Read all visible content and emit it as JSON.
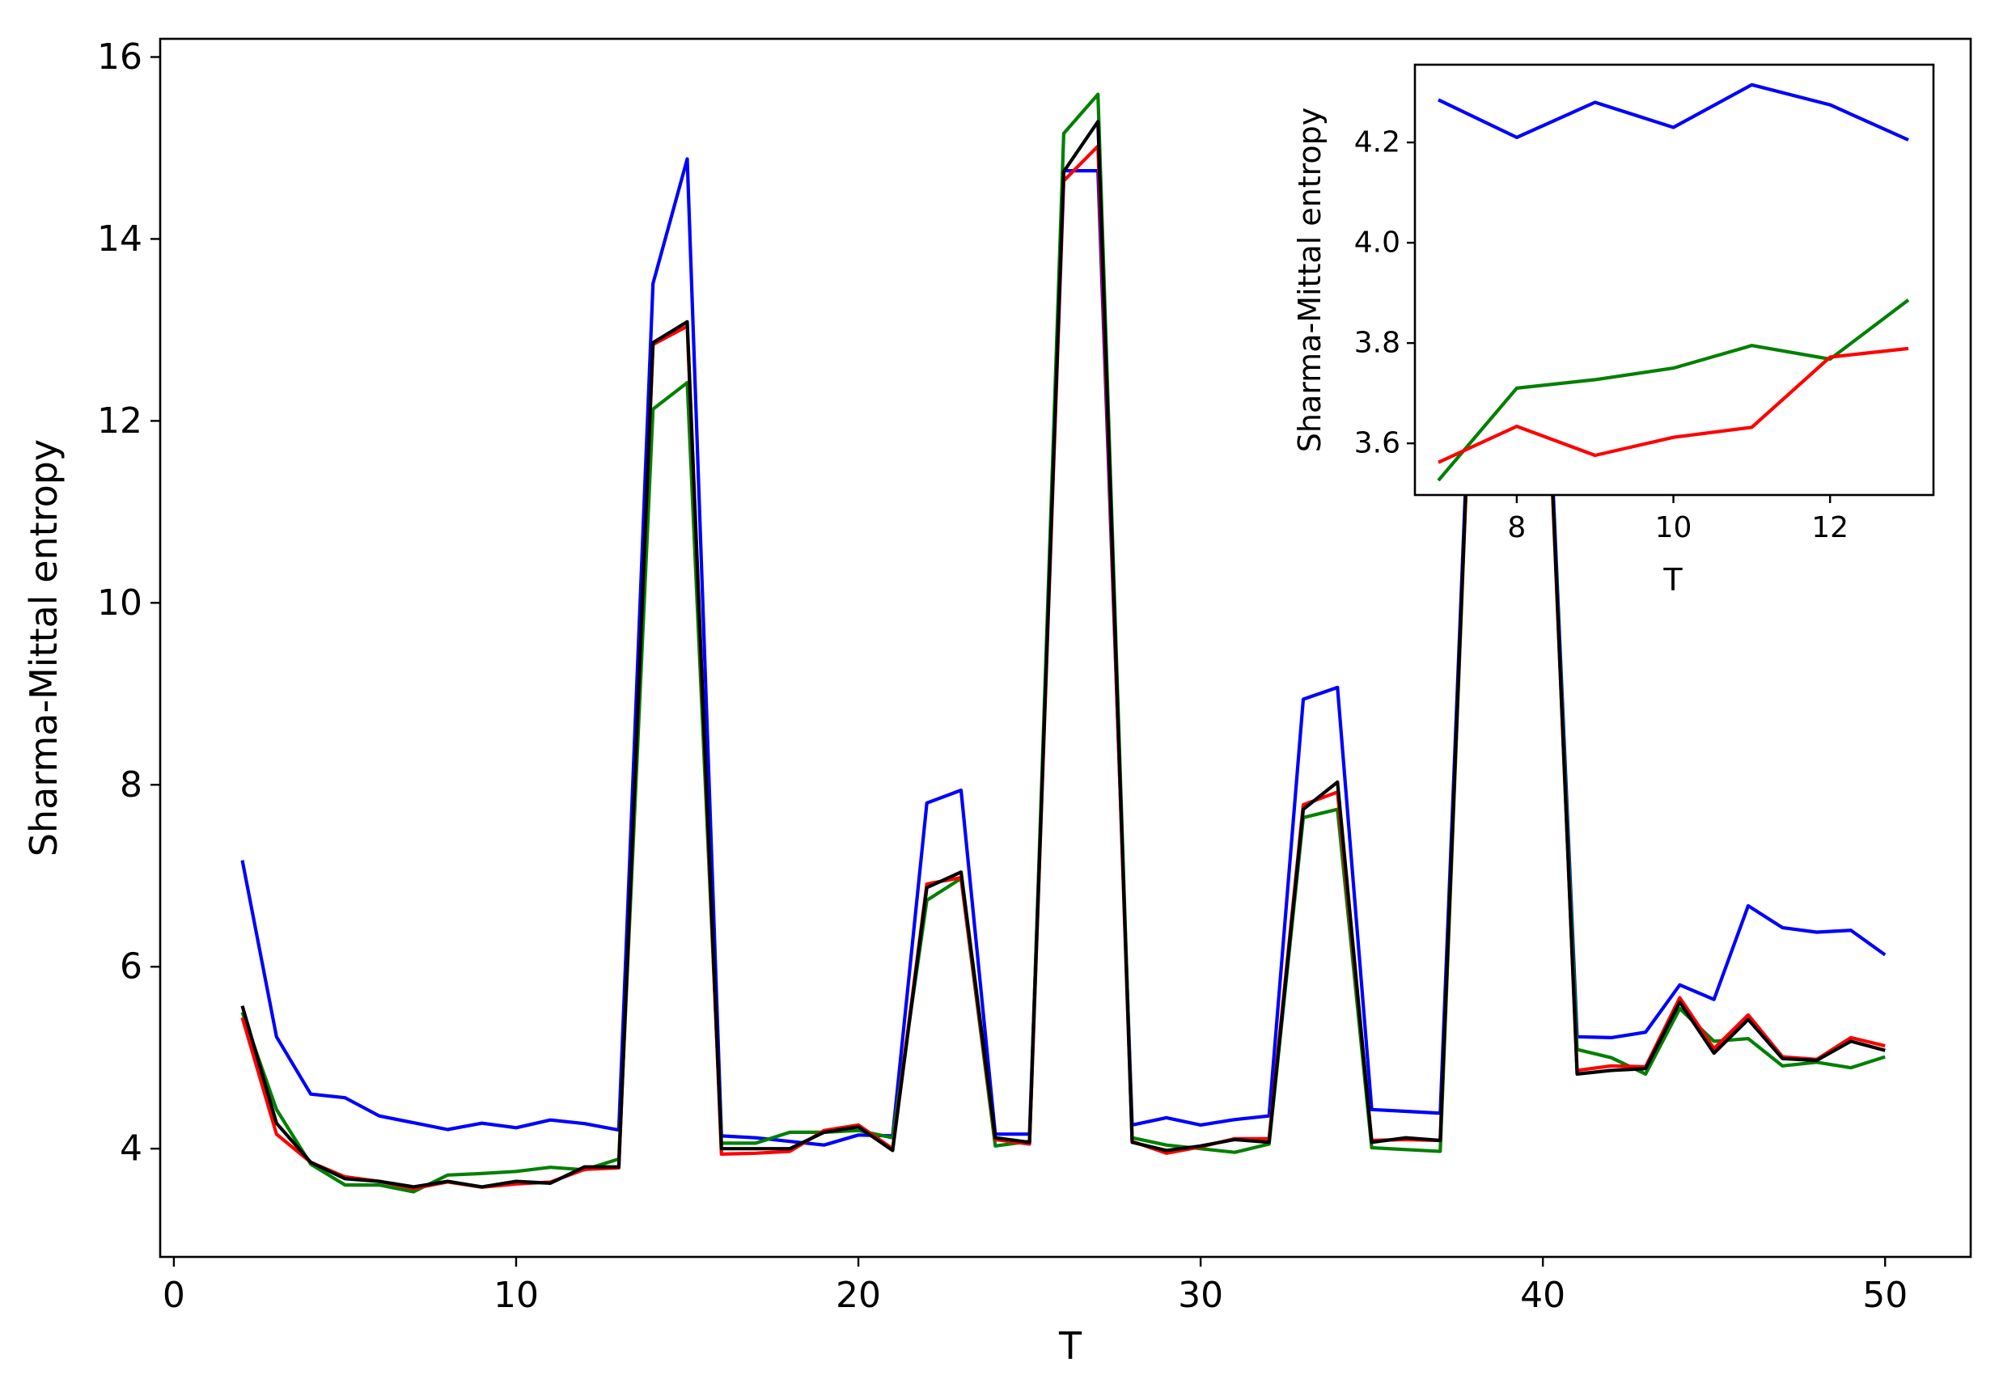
{
  "chart_data": [
    {
      "id": "main",
      "type": "line",
      "title": "",
      "xlabel": "T",
      "ylabel": "Sharma-Mittal entropy",
      "xlim": [
        -0.4,
        52.5
      ],
      "ylim": [
        2.81,
        16.2
      ],
      "xticks": [
        0,
        10,
        20,
        30,
        40,
        50
      ],
      "yticks": [
        4,
        6,
        8,
        10,
        12,
        14,
        16
      ],
      "grid": false,
      "legend": null,
      "x": [
        2,
        3,
        4,
        5,
        6,
        7,
        8,
        9,
        10,
        11,
        12,
        13,
        14,
        15,
        16,
        17,
        18,
        19,
        20,
        21,
        22,
        23,
        24,
        25,
        26,
        27,
        28,
        29,
        30,
        31,
        32,
        33,
        34,
        35,
        36,
        37,
        38,
        39,
        40,
        41,
        42,
        43,
        44,
        45,
        46,
        47,
        48,
        49,
        50
      ],
      "series": [
        {
          "name": "blue",
          "color": "#0000ff",
          "values": [
            7.17,
            5.23,
            4.6,
            4.56,
            4.36,
            4.285,
            4.21,
            4.28,
            4.23,
            4.315,
            4.275,
            4.205,
            13.51,
            14.88,
            4.14,
            4.12,
            4.08,
            4.04,
            4.15,
            4.14,
            7.8,
            7.94,
            4.16,
            4.16,
            14.75,
            14.75,
            4.26,
            4.34,
            4.26,
            4.32,
            4.36,
            8.94,
            9.07,
            4.43,
            4.41,
            4.39,
            13.7,
            13.8,
            13.8,
            5.23,
            5.22,
            5.28,
            5.8,
            5.64,
            6.67,
            6.43,
            6.38,
            6.4,
            6.13
          ]
        },
        {
          "name": "green",
          "color": "#008000",
          "values": [
            5.5,
            4.43,
            3.83,
            3.6,
            3.6,
            3.526,
            3.71,
            3.727,
            3.75,
            3.795,
            3.768,
            3.886,
            12.13,
            12.42,
            4.06,
            4.06,
            4.18,
            4.18,
            4.2,
            4.12,
            6.73,
            6.97,
            4.03,
            4.08,
            15.16,
            15.59,
            4.12,
            4.04,
            4.0,
            3.96,
            4.05,
            7.64,
            7.73,
            4.01,
            3.99,
            3.97,
            13.6,
            13.7,
            13.7,
            5.09,
            5.0,
            4.82,
            5.54,
            5.18,
            5.21,
            4.91,
            4.95,
            4.89,
            5.01
          ]
        },
        {
          "name": "red",
          "color": "#ff0000",
          "values": [
            5.44,
            4.16,
            3.85,
            3.69,
            3.64,
            3.562,
            3.634,
            3.576,
            3.612,
            3.632,
            3.772,
            3.789,
            12.84,
            13.04,
            3.94,
            3.95,
            3.97,
            4.2,
            4.26,
            4.0,
            6.91,
            6.98,
            4.1,
            4.05,
            14.64,
            15.02,
            4.08,
            3.95,
            4.02,
            4.11,
            4.11,
            7.78,
            7.92,
            4.09,
            4.1,
            4.09,
            13.6,
            13.7,
            13.7,
            4.86,
            4.91,
            4.9,
            5.66,
            5.1,
            5.47,
            5.01,
            4.98,
            5.22,
            5.13
          ]
        },
        {
          "name": "black",
          "color": "#000000",
          "values": [
            5.57,
            4.28,
            3.85,
            3.67,
            3.64,
            3.58,
            3.64,
            3.58,
            3.64,
            3.62,
            3.8,
            3.8,
            12.86,
            13.09,
            4.0,
            4.0,
            4.0,
            4.18,
            4.24,
            3.98,
            6.87,
            7.04,
            4.12,
            4.07,
            14.74,
            15.29,
            4.07,
            3.98,
            4.03,
            4.1,
            4.07,
            7.73,
            8.03,
            4.07,
            4.12,
            4.09,
            13.65,
            13.75,
            13.79,
            4.82,
            4.86,
            4.88,
            5.61,
            5.05,
            5.42,
            4.99,
            4.97,
            5.18,
            5.08
          ]
        }
      ]
    },
    {
      "id": "inset",
      "type": "line",
      "title": "",
      "xlabel": "T",
      "ylabel": "Sharma-Mittal entropy",
      "xlim": [
        6.7,
        13.32
      ],
      "ylim": [
        3.497,
        4.355
      ],
      "xticks": [
        8,
        10,
        12
      ],
      "yticks": [
        "3.6",
        "3.8",
        "4.0",
        "4.2"
      ],
      "grid": false,
      "legend": null,
      "x": [
        7,
        8,
        9,
        10,
        11,
        12,
        13
      ],
      "series": [
        {
          "name": "blue",
          "color": "#0000ff",
          "values": [
            4.285,
            4.21,
            4.28,
            4.23,
            4.315,
            4.275,
            4.205
          ]
        },
        {
          "name": "green",
          "color": "#008000",
          "values": [
            3.526,
            3.71,
            3.727,
            3.75,
            3.795,
            3.768,
            3.886
          ]
        },
        {
          "name": "red",
          "color": "#ff0000",
          "values": [
            3.562,
            3.634,
            3.576,
            3.612,
            3.632,
            3.772,
            3.789
          ]
        }
      ]
    }
  ],
  "main": {
    "xlabel": "T",
    "ylabel": "Sharma-Mittal entropy",
    "xtick_labels": [
      "0",
      "10",
      "20",
      "30",
      "40",
      "50"
    ],
    "ytick_labels": [
      "4",
      "6",
      "8",
      "10",
      "12",
      "14",
      "16"
    ]
  },
  "inset": {
    "xlabel": "T",
    "ylabel": "Sharma-Mittal entropy",
    "xtick_labels": [
      "8",
      "10",
      "12"
    ],
    "ytick_labels": [
      "3.6",
      "3.8",
      "4.0",
      "4.2"
    ]
  }
}
